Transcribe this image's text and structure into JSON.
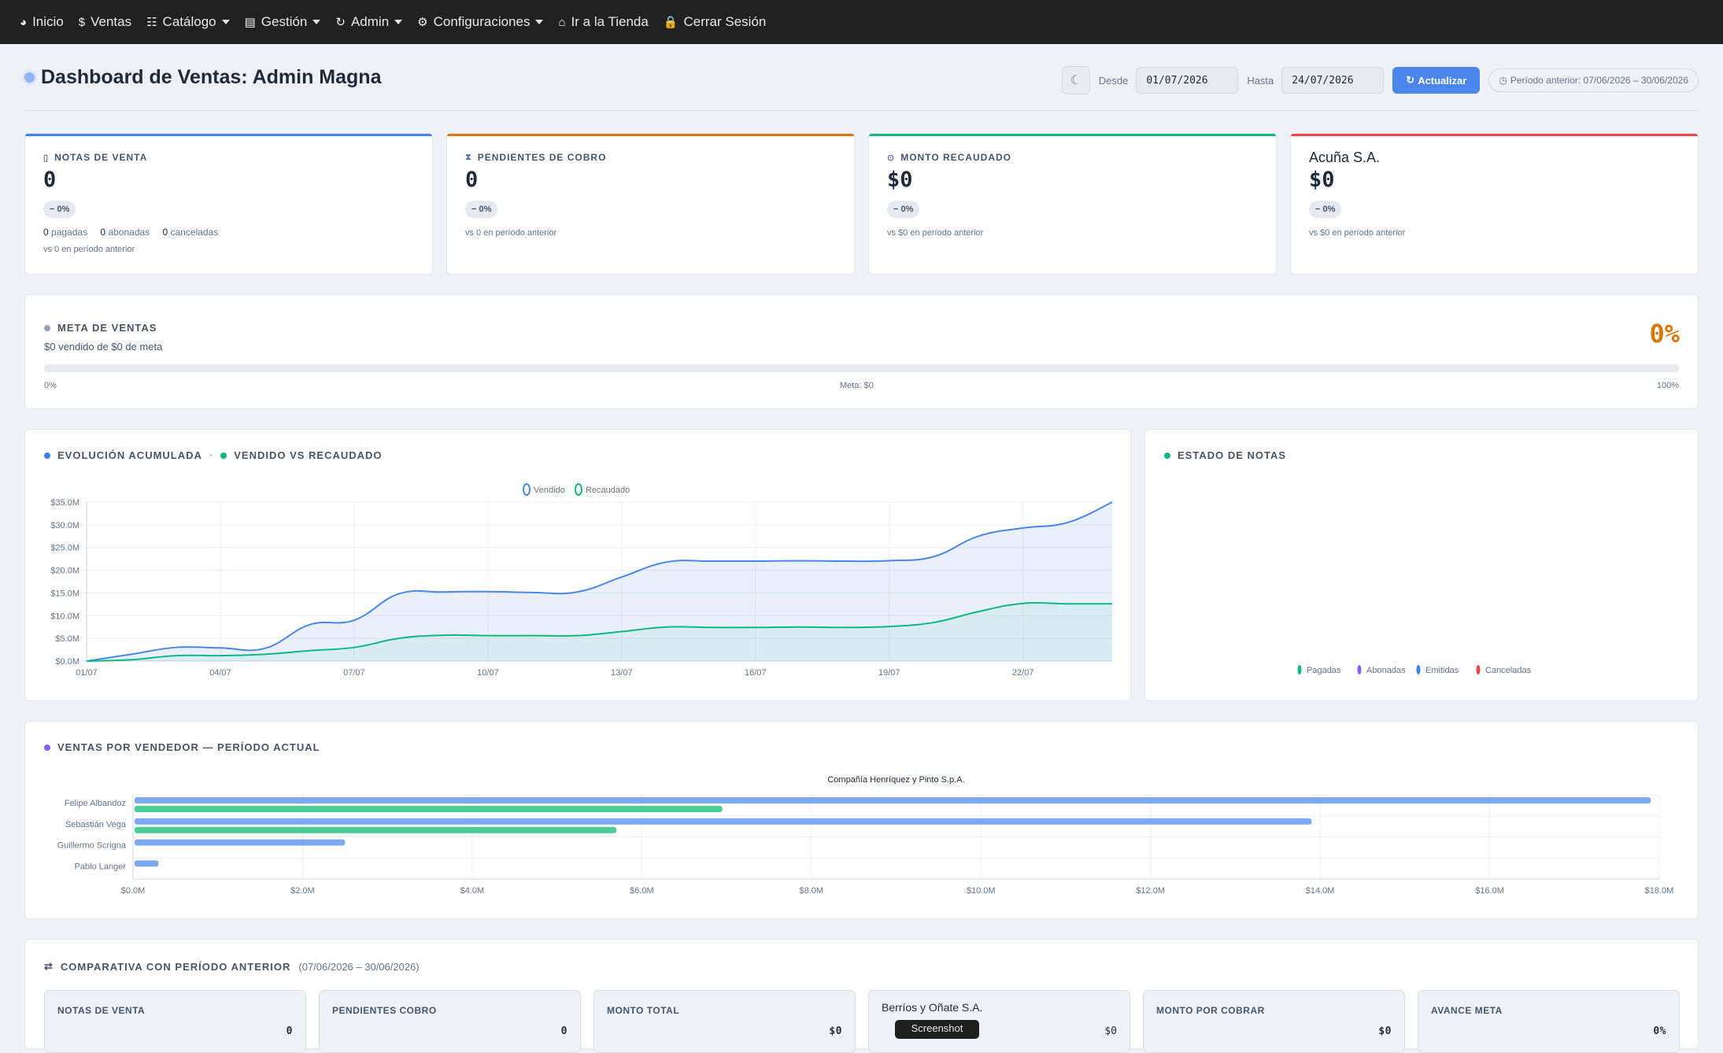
{
  "nav": {
    "items": [
      {
        "label": "Inicio",
        "icon": "dashboard-icon",
        "glyph": "◕"
      },
      {
        "label": "Ventas",
        "icon": "dollar-icon",
        "glyph": "$"
      },
      {
        "label": "Catálogo",
        "icon": "list-icon",
        "glyph": "☷"
      },
      {
        "label": "Gestión",
        "icon": "table-icon",
        "glyph": "▤"
      },
      {
        "label": "Admin",
        "icon": "refresh-icon",
        "glyph": "↻"
      },
      {
        "label": "Configuraciones",
        "icon": "gear-icon",
        "glyph": "⚙"
      },
      {
        "label": "Ir a la Tienda",
        "icon": "home-icon",
        "glyph": "⌂"
      },
      {
        "label": "Cerrar Sesión",
        "icon": "lock-icon",
        "glyph": "🔒"
      }
    ]
  },
  "header": {
    "title": "Dashboard de Ventas: Admin Magna",
    "desde_label": "Desde",
    "desde_value": "01/07/2026",
    "hasta_label": "Hasta",
    "hasta_value": "24/07/2026",
    "refresh_label": "Actualizar",
    "prev_period": "Período anterior: 07/06/2026 – 30/06/2026"
  },
  "kpis": {
    "notas": {
      "label": "NOTAS DE VENTA",
      "value": "0",
      "delta": "0%",
      "pagadas": "0",
      "pagadas_label": "pagadas",
      "abonadas": "0",
      "abonadas_label": "abonadas",
      "canceladas": "0",
      "canceladas_label": "canceladas",
      "note": "vs 0 en período anterior",
      "color": "#3b82f6"
    },
    "pendientes": {
      "label": "PENDIENTES DE COBRO",
      "value": "0",
      "delta": "0%",
      "note": "vs 0 en período anterior",
      "color": "#d97706"
    },
    "monto": {
      "label": "MONTO RECAUDADO",
      "value": "$0",
      "delta": "0%",
      "note": "vs $0 en período anterior",
      "color": "#10b981"
    },
    "company": {
      "label": "Acuña S.A.",
      "value": "$0",
      "delta": "0%",
      "note": "vs $0 en período anterior",
      "color": "#ef4444"
    }
  },
  "meta": {
    "label": "META DE VENTAS",
    "sub": "$0 vendido de $0 de meta",
    "pct": "0%",
    "progress": 0,
    "scale_min": "0%",
    "scale_mid": "Meta: $0",
    "scale_max": "100%"
  },
  "evolucion": {
    "title_a": "EVOLUCIÓN ACUMULADA",
    "sep": "·",
    "title_b": "VENDIDO VS RECAUDADO"
  },
  "estado": {
    "title": "ESTADO DE NOTAS",
    "legend": [
      {
        "name": "Pagadas",
        "color": "#10b981"
      },
      {
        "name": "Abonadas",
        "color": "#8b5cf6"
      },
      {
        "name": "Emitidas",
        "color": "#3b82f6"
      },
      {
        "name": "Canceladas",
        "color": "#ef4444"
      }
    ]
  },
  "vendedores": {
    "title": "VENTAS POR VENDEDOR — PERÍODO ACTUAL"
  },
  "comparativa": {
    "title": "COMPARATIVA CON PERÍODO ANTERIOR",
    "range": "(07/06/2026 – 30/06/2026)",
    "boxes": [
      {
        "label": "NOTAS DE VENTA",
        "value": "0"
      },
      {
        "label": "PENDIENTES COBRO",
        "value": "0"
      },
      {
        "label": "MONTO TOTAL",
        "value": "$0"
      },
      {
        "label": "Berríos y Oñate S.A.",
        "value": "$0"
      },
      {
        "label": "MONTO POR COBRAR",
        "value": "$0"
      },
      {
        "label": "AVANCE META",
        "value": "0%"
      }
    ],
    "tooltip": "Screenshot"
  },
  "colors": {
    "vendido": "#4a86e8",
    "recaudado": "#10b981",
    "accent": "#4a86ec",
    "meta": "#d97706"
  },
  "chart_data": [
    {
      "type": "area",
      "x": [
        "01/07",
        "02/07",
        "03/07",
        "04/07",
        "05/07",
        "06/07",
        "07/07",
        "08/07",
        "09/07",
        "10/07",
        "11/07",
        "12/07",
        "13/07",
        "14/07",
        "15/07",
        "16/07",
        "17/07",
        "18/07",
        "19/07",
        "20/07",
        "21/07",
        "22/07",
        "23/07",
        "24/07"
      ],
      "x_ticks": [
        "01/07",
        "04/07",
        "07/07",
        "10/07",
        "13/07",
        "16/07",
        "19/07",
        "22/07"
      ],
      "y_ticks": [
        "$0.0M",
        "$5.0M",
        "$10.0M",
        "$15.0M",
        "$20.0M",
        "$25.0M",
        "$30.0M",
        "$35.0M"
      ],
      "ylim": [
        0,
        35
      ],
      "series": [
        {
          "name": "Vendido",
          "values": [
            0,
            1.5,
            3.0,
            2.9,
            2.8,
            8.0,
            9.0,
            14.8,
            15.2,
            15.3,
            15.1,
            15.2,
            18.5,
            21.8,
            22.0,
            22.0,
            22.1,
            22.0,
            22.1,
            23.0,
            27.5,
            29.3,
            30.5,
            35.0
          ]
        },
        {
          "name": "Recaudado",
          "values": [
            0,
            0.3,
            1.2,
            1.2,
            1.5,
            2.3,
            3.0,
            5.0,
            5.7,
            5.6,
            5.6,
            5.6,
            6.5,
            7.5,
            7.4,
            7.4,
            7.5,
            7.4,
            7.6,
            8.5,
            10.9,
            12.7,
            12.6,
            12.6
          ]
        }
      ]
    },
    {
      "type": "pie",
      "categories": [
        "Pagadas",
        "Abonadas",
        "Emitidas",
        "Canceladas"
      ],
      "values": [
        0,
        0,
        0,
        0
      ]
    },
    {
      "type": "bar",
      "title": "Compañía Henríquez y Pinto S.p.A.",
      "categories": [
        "Felipe Albandoz",
        "Sebastián Vega",
        "Guillermo Scrigna",
        "Pablo Langer"
      ],
      "series": [
        {
          "values": [
            17.9,
            13.9,
            2.5,
            0.3
          ]
        },
        {
          "values": [
            6.95,
            5.7,
            0,
            0
          ]
        }
      ],
      "x_ticks": [
        "$0.0M",
        "$2.0M",
        "$4.0M",
        "$6.0M",
        "$8.0M",
        "$10.0M",
        "$12.0M",
        "$14.0M",
        "$16.0M",
        "$18.0M"
      ],
      "xlim": [
        0,
        18
      ]
    }
  ]
}
